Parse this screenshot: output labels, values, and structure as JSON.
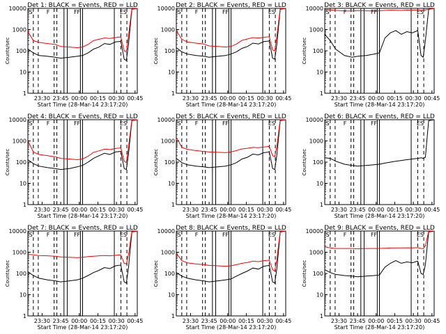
{
  "x_ticks": [
    "23:30",
    "23:45",
    "00:00",
    "00:15",
    "00:30",
    "00:45"
  ],
  "y_ticks": [
    "1",
    "10",
    "100",
    "1000",
    "10000"
  ],
  "xlabel": "Start Time (28-Mar-14 23:17:20)",
  "ylabel": "Counts/sec",
  "colors": {
    "events": "#000000",
    "lld": "#ff0000",
    "frame": "#000000"
  },
  "panel_markers": [
    "S",
    "F",
    "FF",
    "ES"
  ],
  "chart_data": [
    {
      "type": "line",
      "title": "Det 1: BLACK = Events, RED = LLD",
      "ylim": [
        1,
        10000
      ],
      "yscale": "log",
      "x": [
        0,
        0.05,
        0.1,
        0.18,
        0.25,
        0.3,
        0.38,
        0.45,
        0.5,
        0.55,
        0.6,
        0.65,
        0.7,
        0.75,
        0.8,
        0.85,
        0.88,
        0.9,
        0.92,
        0.95,
        1
      ],
      "series": [
        {
          "name": "Events",
          "values": [
            120,
            80,
            60,
            55,
            50,
            45,
            50,
            55,
            60,
            80,
            120,
            150,
            220,
            200,
            260,
            280,
            40,
            35,
            200,
            9000,
            10000
          ]
        },
        {
          "name": "LLD",
          "values": [
            800,
            300,
            250,
            220,
            200,
            160,
            150,
            140,
            150,
            200,
            300,
            350,
            400,
            380,
            420,
            450,
            100,
            90,
            500,
            9500,
            10000
          ]
        }
      ]
    },
    {
      "type": "line",
      "title": "Det 2: BLACK = Events, RED = LLD",
      "ylim": [
        1,
        10000
      ],
      "yscale": "log",
      "x": [
        0,
        0.05,
        0.1,
        0.18,
        0.25,
        0.3,
        0.38,
        0.45,
        0.5,
        0.55,
        0.6,
        0.65,
        0.7,
        0.75,
        0.8,
        0.85,
        0.88,
        0.9,
        0.92,
        0.95,
        1
      ],
      "series": [
        {
          "name": "Events",
          "values": [
            140,
            90,
            70,
            60,
            55,
            50,
            55,
            60,
            70,
            90,
            130,
            160,
            230,
            210,
            270,
            290,
            45,
            40,
            220,
            9000,
            10000
          ]
        },
        {
          "name": "LLD",
          "values": [
            900,
            350,
            260,
            230,
            210,
            170,
            160,
            150,
            160,
            210,
            310,
            360,
            420,
            400,
            430,
            460,
            110,
            100,
            520,
            9500,
            10000
          ]
        }
      ]
    },
    {
      "type": "line",
      "title": "Det 3: BLACK = Events, RED = LLD",
      "ylim": [
        1,
        10000
      ],
      "yscale": "log",
      "x": [
        0,
        0.05,
        0.1,
        0.18,
        0.25,
        0.3,
        0.38,
        0.45,
        0.5,
        0.55,
        0.6,
        0.65,
        0.7,
        0.75,
        0.8,
        0.85,
        0.88,
        0.9,
        0.92,
        0.95,
        1
      ],
      "series": [
        {
          "name": "Events",
          "values": [
            600,
            300,
            120,
            60,
            50,
            55,
            60,
            70,
            80,
            400,
            700,
            900,
            600,
            800,
            700,
            900,
            60,
            50,
            300,
            9000,
            10000
          ]
        },
        {
          "name": "LLD",
          "values": [
            9000,
            8500,
            8000,
            7500,
            7500,
            7800,
            7600,
            7500,
            7700,
            8000,
            8200,
            8100,
            8000,
            8300,
            8200,
            8400,
            8000,
            7900,
            8500,
            9000,
            10000
          ]
        }
      ]
    },
    {
      "type": "line",
      "title": "Det 4: BLACK = Events, RED = LLD",
      "ylim": [
        1,
        10000
      ],
      "yscale": "log",
      "x": [
        0,
        0.05,
        0.1,
        0.18,
        0.25,
        0.3,
        0.38,
        0.45,
        0.5,
        0.55,
        0.6,
        0.65,
        0.7,
        0.75,
        0.8,
        0.85,
        0.88,
        0.9,
        0.92,
        0.95,
        1
      ],
      "series": [
        {
          "name": "Events",
          "values": [
            130,
            85,
            65,
            55,
            50,
            45,
            50,
            60,
            70,
            100,
            150,
            200,
            260,
            230,
            300,
            320,
            50,
            45,
            240,
            9000,
            10000
          ]
        },
        {
          "name": "LLD",
          "values": [
            1000,
            300,
            230,
            200,
            180,
            150,
            140,
            130,
            140,
            190,
            290,
            340,
            410,
            390,
            440,
            470,
            110,
            95,
            510,
            9500,
            10000
          ]
        }
      ]
    },
    {
      "type": "line",
      "title": "Det 5: BLACK = Events, RED = LLD",
      "ylim": [
        1,
        10000
      ],
      "yscale": "log",
      "x": [
        0,
        0.05,
        0.1,
        0.18,
        0.25,
        0.3,
        0.38,
        0.45,
        0.5,
        0.55,
        0.6,
        0.65,
        0.7,
        0.75,
        0.8,
        0.85,
        0.88,
        0.9,
        0.92,
        0.95,
        1
      ],
      "series": [
        {
          "name": "Events",
          "values": [
            150,
            95,
            75,
            65,
            60,
            55,
            60,
            65,
            75,
            95,
            140,
            170,
            240,
            220,
            280,
            300,
            50,
            45,
            230,
            9000,
            10000
          ]
        },
        {
          "name": "LLD",
          "values": [
            1500,
            500,
            400,
            350,
            320,
            300,
            290,
            280,
            300,
            350,
            420,
            450,
            500,
            480,
            520,
            550,
            200,
            180,
            600,
            9500,
            10000
          ]
        }
      ]
    },
    {
      "type": "line",
      "title": "Det 6: BLACK = Events, RED = LLD",
      "ylim": [
        1,
        10000
      ],
      "yscale": "log",
      "x": [
        0,
        0.05,
        0.1,
        0.18,
        0.25,
        0.3,
        0.38,
        0.45,
        0.5,
        0.55,
        0.6,
        0.65,
        0.7,
        0.75,
        0.8,
        0.85,
        0.88,
        0.9,
        0.92,
        0.95,
        1
      ],
      "series": [
        {
          "name": "Events",
          "values": [
            160,
            150,
            110,
            80,
            70,
            65,
            70,
            75,
            80,
            90,
            100,
            110,
            120,
            130,
            140,
            150,
            160,
            150,
            170,
            9000,
            10000
          ]
        }
      ]
    },
    {
      "type": "line",
      "title": "Det 7: BLACK = Events, RED = LLD",
      "ylim": [
        1,
        10000
      ],
      "yscale": "log",
      "x": [
        0,
        0.05,
        0.1,
        0.18,
        0.25,
        0.3,
        0.38,
        0.45,
        0.5,
        0.55,
        0.6,
        0.65,
        0.7,
        0.75,
        0.8,
        0.85,
        0.88,
        0.9,
        0.92,
        0.95,
        1
      ],
      "series": [
        {
          "name": "Events",
          "values": [
            120,
            80,
            60,
            50,
            45,
            40,
            45,
            50,
            60,
            80,
            110,
            140,
            190,
            170,
            230,
            250,
            40,
            35,
            190,
            9000,
            10000
          ]
        },
        {
          "name": "LLD",
          "values": [
            800,
            750,
            700,
            680,
            650,
            600,
            580,
            560,
            580,
            620,
            650,
            680,
            700,
            680,
            720,
            750,
            300,
            280,
            800,
            9500,
            10000
          ]
        }
      ]
    },
    {
      "type": "line",
      "title": "Det 8: BLACK = Events, RED = LLD",
      "ylim": [
        1,
        10000
      ],
      "yscale": "log",
      "x": [
        0,
        0.05,
        0.1,
        0.18,
        0.25,
        0.3,
        0.38,
        0.45,
        0.5,
        0.55,
        0.6,
        0.65,
        0.7,
        0.75,
        0.8,
        0.85,
        0.88,
        0.9,
        0.92,
        0.95,
        1
      ],
      "series": [
        {
          "name": "Events",
          "values": [
            110,
            75,
            60,
            50,
            45,
            40,
            45,
            50,
            55,
            75,
            100,
            130,
            180,
            160,
            220,
            240,
            40,
            35,
            180,
            9000,
            10000
          ]
        },
        {
          "name": "LLD",
          "values": [
            900,
            400,
            320,
            280,
            260,
            240,
            230,
            220,
            230,
            260,
            300,
            330,
            380,
            360,
            400,
            420,
            150,
            130,
            500,
            9500,
            10000
          ]
        }
      ]
    },
    {
      "type": "line",
      "title": "Det 9: BLACK = Events, RED = LLD",
      "ylim": [
        1,
        10000
      ],
      "yscale": "log",
      "x": [
        0,
        0.05,
        0.1,
        0.18,
        0.25,
        0.3,
        0.38,
        0.45,
        0.5,
        0.55,
        0.6,
        0.65,
        0.7,
        0.75,
        0.8,
        0.85,
        0.88,
        0.9,
        0.92,
        0.95,
        1
      ],
      "series": [
        {
          "name": "Events",
          "values": [
            150,
            110,
            90,
            80,
            75,
            70,
            75,
            80,
            85,
            200,
            300,
            400,
            300,
            350,
            320,
            380,
            100,
            90,
            250,
            9000,
            10000
          ]
        },
        {
          "name": "LLD",
          "values": [
            1800,
            1600,
            1500,
            1500,
            1500,
            1450,
            1500,
            1500,
            1520,
            1550,
            1580,
            1600,
            1600,
            1620,
            1610,
            1650,
            1500,
            1480,
            2000,
            9500,
            10000
          ]
        }
      ]
    }
  ]
}
